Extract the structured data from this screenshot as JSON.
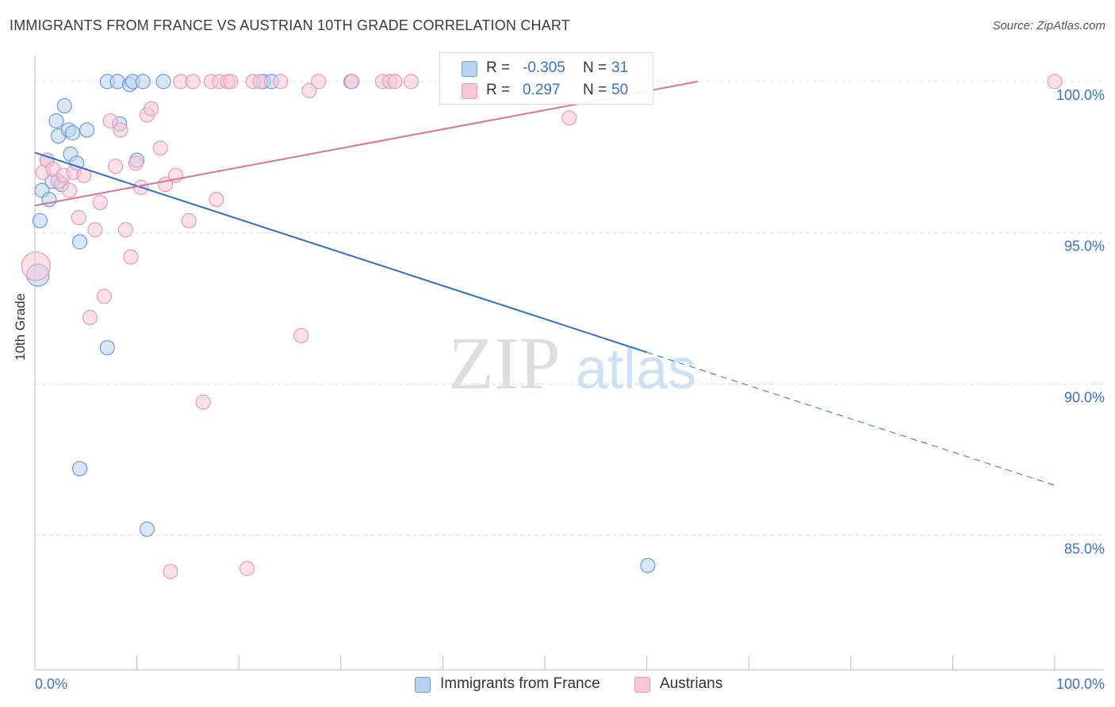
{
  "title": "IMMIGRANTS FROM FRANCE VS AUSTRIAN 10TH GRADE CORRELATION CHART",
  "source": "Source: ZipAtlas.com",
  "watermark": {
    "zip": "ZIP",
    "atlas": "atlas"
  },
  "colors": {
    "blue_fill": "#b9d1f2",
    "blue_stroke": "#6d9ad8",
    "blue_line": "#2d6fd0",
    "pink_fill": "#f8c6d6",
    "pink_stroke": "#e89ab4",
    "pink_line": "#e0709a",
    "grid": "#dcdcdc",
    "axis_text": "#3a72c8"
  },
  "legend": {
    "series1": {
      "r_label": "R =",
      "r_value": "-0.305",
      "n_label": "N =",
      "n_value": "31"
    },
    "series2": {
      "r_label": "R =",
      "r_value": "0.297",
      "n_label": "N =",
      "n_value": "50"
    }
  },
  "bottom_legend": [
    "Immigrants from France",
    "Austrians"
  ],
  "chart_data": {
    "type": "scatter",
    "title": "IMMIGRANTS FROM FRANCE VS AUSTRIAN 10TH GRADE CORRELATION CHART",
    "xlabel": "",
    "ylabel": "10th Grade",
    "xlim": [
      0,
      100
    ],
    "ylim": [
      80.5,
      100.6
    ],
    "x_tick_labels": [
      "0.0%",
      "100.0%"
    ],
    "y_ticks": [
      100,
      95,
      90,
      85
    ],
    "y_tick_labels": [
      "100.0%",
      "95.0%",
      "90.0%",
      "85.0%"
    ],
    "series": [
      {
        "name": "Immigrants from France",
        "color": "#b9d1f2",
        "points": [
          [
            0.3,
            93.6,
            14
          ],
          [
            0.5,
            95.4,
            9
          ],
          [
            0.7,
            96.4,
            9
          ],
          [
            1.2,
            97.4,
            9
          ],
          [
            1.4,
            96.1,
            9
          ],
          [
            1.7,
            96.7,
            9
          ],
          [
            2.1,
            98.7,
            9
          ],
          [
            2.3,
            98.2,
            9
          ],
          [
            2.6,
            96.6,
            9
          ],
          [
            2.9,
            99.2,
            9
          ],
          [
            3.3,
            98.4,
            9
          ],
          [
            3.5,
            97.6,
            9
          ],
          [
            3.7,
            98.3,
            9
          ],
          [
            4.1,
            97.3,
            9
          ],
          [
            4.4,
            94.7,
            9
          ],
          [
            5.1,
            98.4,
            9
          ],
          [
            4.4,
            87.2,
            9
          ],
          [
            7.1,
            100.0,
            9
          ],
          [
            8.1,
            100.0,
            9
          ],
          [
            8.3,
            98.6,
            9
          ],
          [
            9.3,
            99.9,
            9
          ],
          [
            9.6,
            100.0,
            9
          ],
          [
            10.0,
            97.4,
            9
          ],
          [
            10.6,
            100.0,
            9
          ],
          [
            11.0,
            85.2,
            9
          ],
          [
            12.6,
            100.0,
            9
          ],
          [
            7.1,
            91.2,
            9
          ],
          [
            22.4,
            100.0,
            9
          ],
          [
            23.2,
            100.0,
            9
          ],
          [
            31.0,
            100.0,
            9
          ],
          [
            60.1,
            84.0,
            9
          ]
        ]
      },
      {
        "name": "Austrians",
        "color": "#f8c6d6",
        "points": [
          [
            0.1,
            93.9,
            18
          ],
          [
            0.8,
            97.0,
            9
          ],
          [
            1.2,
            97.4,
            9
          ],
          [
            1.8,
            97.1,
            9
          ],
          [
            2.3,
            96.7,
            9
          ],
          [
            2.8,
            96.9,
            9
          ],
          [
            3.4,
            96.4,
            9
          ],
          [
            3.8,
            97.0,
            9
          ],
          [
            4.3,
            95.5,
            9
          ],
          [
            4.8,
            96.9,
            9
          ],
          [
            5.4,
            92.2,
            9
          ],
          [
            5.9,
            95.1,
            9
          ],
          [
            6.4,
            96.0,
            9
          ],
          [
            6.8,
            92.9,
            9
          ],
          [
            7.4,
            98.7,
            9
          ],
          [
            7.9,
            97.2,
            9
          ],
          [
            8.4,
            98.4,
            9
          ],
          [
            8.9,
            95.1,
            9
          ],
          [
            9.4,
            94.2,
            9
          ],
          [
            9.9,
            97.3,
            9
          ],
          [
            10.4,
            96.5,
            9
          ],
          [
            11.0,
            98.9,
            9
          ],
          [
            11.4,
            99.1,
            9
          ],
          [
            12.3,
            97.8,
            9
          ],
          [
            12.8,
            96.6,
            9
          ],
          [
            13.3,
            83.8,
            9
          ],
          [
            13.8,
            96.9,
            9
          ],
          [
            14.3,
            100.0,
            9
          ],
          [
            15.1,
            95.4,
            9
          ],
          [
            15.5,
            100.0,
            9
          ],
          [
            16.5,
            89.4,
            9
          ],
          [
            17.3,
            100.0,
            9
          ],
          [
            18.1,
            100.0,
            9
          ],
          [
            18.9,
            100.0,
            9
          ],
          [
            19.2,
            100.0,
            9
          ],
          [
            17.8,
            96.1,
            9
          ],
          [
            20.8,
            83.9,
            9
          ],
          [
            21.4,
            100.0,
            9
          ],
          [
            22.1,
            100.0,
            9
          ],
          [
            24.1,
            100.0,
            9
          ],
          [
            26.1,
            91.6,
            9
          ],
          [
            26.9,
            99.7,
            9
          ],
          [
            27.8,
            100.0,
            9
          ],
          [
            31.1,
            100.0,
            9
          ],
          [
            34.1,
            100.0,
            9
          ],
          [
            34.8,
            100.0,
            9
          ],
          [
            35.3,
            100.0,
            9
          ],
          [
            36.9,
            100.0,
            9
          ],
          [
            52.4,
            98.8,
            9
          ],
          [
            100.0,
            100.0,
            9
          ]
        ]
      }
    ],
    "trendlines": [
      {
        "series": "Immigrants from France",
        "x0": 0,
        "y0": 97.65,
        "x1": 60,
        "y1": 91.05,
        "dashed_to_x": 100,
        "dashed_to_y": 86.65
      },
      {
        "series": "Austrians",
        "x0": 0,
        "y0": 95.9,
        "x1": 65,
        "y1": 100.0
      }
    ]
  }
}
